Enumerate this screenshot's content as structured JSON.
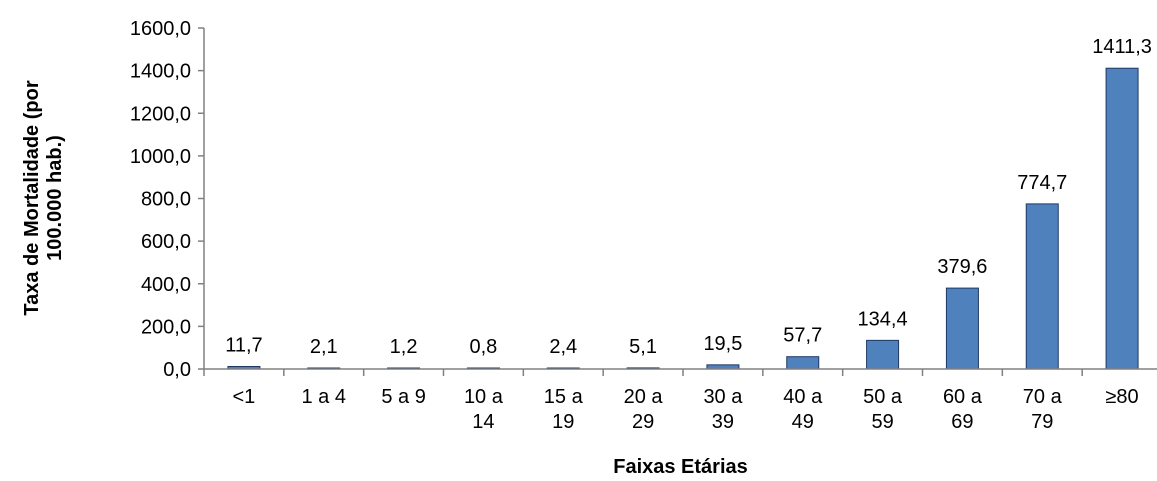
{
  "chart_data": {
    "type": "bar",
    "title": "",
    "xlabel": "Faixas Etárias",
    "ylabel_lines": [
      "Taxa de Mortalidade (por",
      "100.000 hab.)"
    ],
    "ylim": [
      0,
      1600
    ],
    "ytick_values": [
      0,
      200,
      400,
      600,
      800,
      1000,
      1200,
      1400,
      1600
    ],
    "ytick_labels": [
      "0,0",
      "200,0",
      "400,0",
      "600,0",
      "800,0",
      "1000,0",
      "1200,0",
      "1400,0",
      "1600,0"
    ],
    "categories": [
      "<1",
      "1 a 4",
      "5 a 9",
      "10 a 14",
      "15 a 19",
      "20 a 29",
      "30 a 39",
      "40 a 49",
      "50 a 59",
      "60 a 69",
      "70 a 79",
      "≥80"
    ],
    "category_lines": [
      [
        "<1"
      ],
      [
        "1 a 4"
      ],
      [
        "5 a 9"
      ],
      [
        "10 a",
        "14"
      ],
      [
        "15 a",
        "19"
      ],
      [
        "20 a",
        "29"
      ],
      [
        "30 a",
        "39"
      ],
      [
        "40 a",
        "49"
      ],
      [
        "50 a",
        "59"
      ],
      [
        "60 a",
        "69"
      ],
      [
        "70 a",
        "79"
      ],
      [
        "≥80"
      ]
    ],
    "values": [
      11.7,
      2.1,
      1.2,
      0.8,
      2.4,
      5.1,
      19.5,
      57.7,
      134.4,
      379.6,
      774.7,
      1411.3
    ],
    "value_labels": [
      "11,7",
      "2,1",
      "1,2",
      "0,8",
      "2,4",
      "5,1",
      "19,5",
      "57,7",
      "134,4",
      "379,6",
      "774,7",
      "1411,3"
    ],
    "grid": false,
    "legend": "none",
    "colors": {
      "bar_fill": "#4F81BD",
      "bar_stroke": "#1F3864",
      "axis": "#808080",
      "text": "#000000"
    }
  }
}
